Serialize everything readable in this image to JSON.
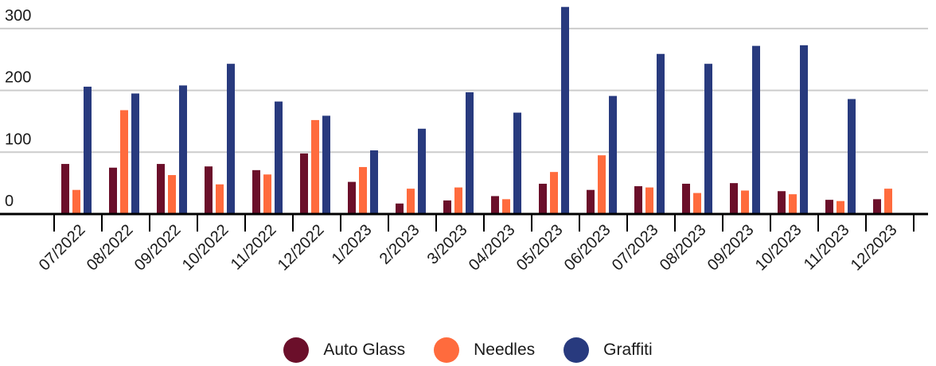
{
  "chart_data": {
    "type": "bar",
    "categories": [
      "07/2022",
      "08/2022",
      "09/2022",
      "10/2022",
      "11/2022",
      "12/2022",
      "1/2023",
      "2/2023",
      "3/2023",
      "04/2023",
      "05/2023",
      "06/2023",
      "07/2023",
      "08/2023",
      "09/2023",
      "10/2023",
      "11/2023",
      "12/2023"
    ],
    "series": [
      {
        "name": "Auto Glass",
        "color": "#6b0f2a",
        "values": [
          81,
          75,
          81,
          77,
          71,
          98,
          52,
          17,
          22,
          29,
          49,
          39,
          45,
          49,
          50,
          37,
          23,
          24
        ]
      },
      {
        "name": "Needles",
        "color": "#ff6b3d",
        "values": [
          39,
          168,
          63,
          48,
          64,
          152,
          76,
          41,
          43,
          24,
          68,
          95,
          43,
          34,
          38,
          32,
          21,
          41
        ]
      },
      {
        "name": "Graffiti",
        "color": "#283a7e",
        "values": [
          206,
          195,
          208,
          243,
          182,
          159,
          103,
          138,
          197,
          164,
          335,
          191,
          259,
          243,
          272,
          273,
          186,
          null
        ]
      }
    ],
    "yticks": [
      0,
      100,
      200,
      300
    ],
    "ylim": [
      0,
      335
    ],
    "grid": true,
    "legend": "bottom"
  }
}
